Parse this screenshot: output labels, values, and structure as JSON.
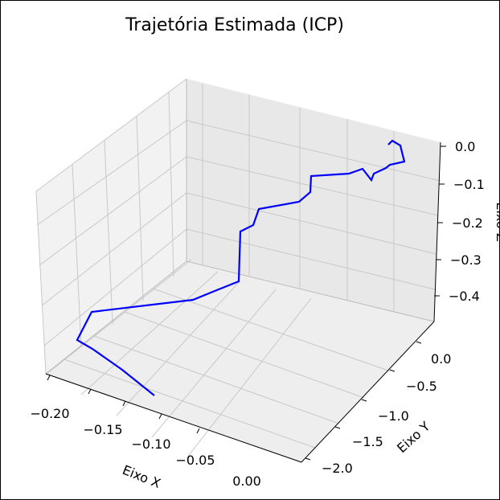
{
  "chart_data": {
    "type": "line",
    "projection": "3d",
    "title": "Trajetória Estimada (ICP)",
    "xlabel": "Eixo X",
    "ylabel": "Eixo Y",
    "zlabel": "Eixo Z",
    "xlim": [
      -0.21,
      0.01
    ],
    "ylim": [
      -2.2,
      0.1
    ],
    "zlim": [
      -0.47,
      0.02
    ],
    "xticks": [
      "−0.20",
      "−0.15",
      "−0.10",
      "−0.05",
      "0.00"
    ],
    "yticks": [
      "−2.0",
      "−1.5",
      "−1.0",
      "−0.5",
      "0.0"
    ],
    "zticks": [
      "0.0",
      "−0.1",
      "−0.2",
      "−0.3",
      "−0.4"
    ],
    "grid": true,
    "line_color": "#0000ff",
    "series": [
      {
        "x": [
          -0.18,
          -0.15,
          -0.14,
          -0.12,
          -0.1,
          -0.08,
          -0.06,
          -0.04,
          -0.02,
          0.0,
          0.0,
          -0.01,
          -0.02,
          -0.03,
          -0.04,
          -0.05,
          -0.055,
          -0.05,
          -0.06,
          -0.065,
          -0.06,
          -0.05,
          -0.04,
          -0.03
        ],
        "y": [
          -2.05,
          -1.95,
          -1.8,
          -1.65,
          -1.5,
          -1.35,
          -1.2,
          -1.05,
          -0.95,
          -0.85,
          -0.75,
          -0.65,
          -0.58,
          -0.52,
          -0.45,
          -0.38,
          -0.3,
          -0.22,
          -0.15,
          -0.08,
          -0.02,
          0.02,
          0.05,
          0.06
        ],
        "z": [
          -0.43,
          -0.41,
          -0.36,
          -0.33,
          -0.32,
          -0.31,
          -0.26,
          -0.24,
          -0.23,
          -0.17,
          -0.12,
          -0.1,
          -0.09,
          -0.085,
          -0.08,
          -0.08,
          -0.065,
          -0.085,
          -0.075,
          -0.075,
          -0.04,
          -0.045,
          -0.02,
          0.0
        ]
      }
    ]
  }
}
